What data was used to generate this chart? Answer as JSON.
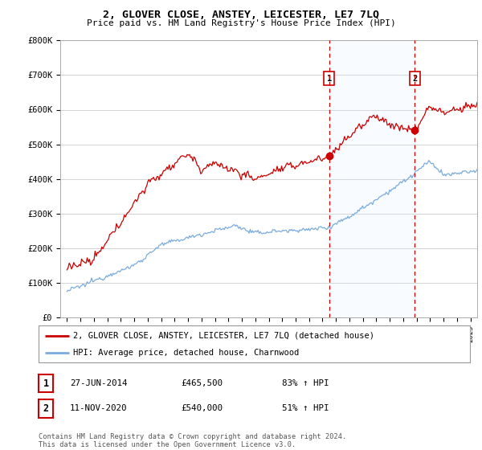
{
  "title": "2, GLOVER CLOSE, ANSTEY, LEICESTER, LE7 7LQ",
  "subtitle": "Price paid vs. HM Land Registry's House Price Index (HPI)",
  "ylabel_ticks": [
    "£0",
    "£100K",
    "£200K",
    "£300K",
    "£400K",
    "£500K",
    "£600K",
    "£700K",
    "£800K"
  ],
  "ytick_values": [
    0,
    100000,
    200000,
    300000,
    400000,
    500000,
    600000,
    700000,
    800000
  ],
  "ylim": [
    0,
    800000
  ],
  "xlim_start": 1994.5,
  "xlim_end": 2025.5,
  "sale1_date": 2014.49,
  "sale1_price": 465500,
  "sale1_label": "1",
  "sale2_date": 2020.87,
  "sale2_price": 540000,
  "sale2_label": "2",
  "legend_house": "2, GLOVER CLOSE, ANSTEY, LEICESTER, LE7 7LQ (detached house)",
  "legend_hpi": "HPI: Average price, detached house, Charnwood",
  "table_row1": [
    "1",
    "27-JUN-2014",
    "£465,500",
    "83% ↑ HPI"
  ],
  "table_row2": [
    "2",
    "11-NOV-2020",
    "£540,000",
    "51% ↑ HPI"
  ],
  "footer": "Contains HM Land Registry data © Crown copyright and database right 2024.\nThis data is licensed under the Open Government Licence v3.0.",
  "line_color_house": "#cc0000",
  "line_color_hpi": "#7aacdc",
  "shade_color": "#ddeeff",
  "vline_color": "#cc0000",
  "background_color": "#ffffff",
  "grid_color": "#cccccc"
}
